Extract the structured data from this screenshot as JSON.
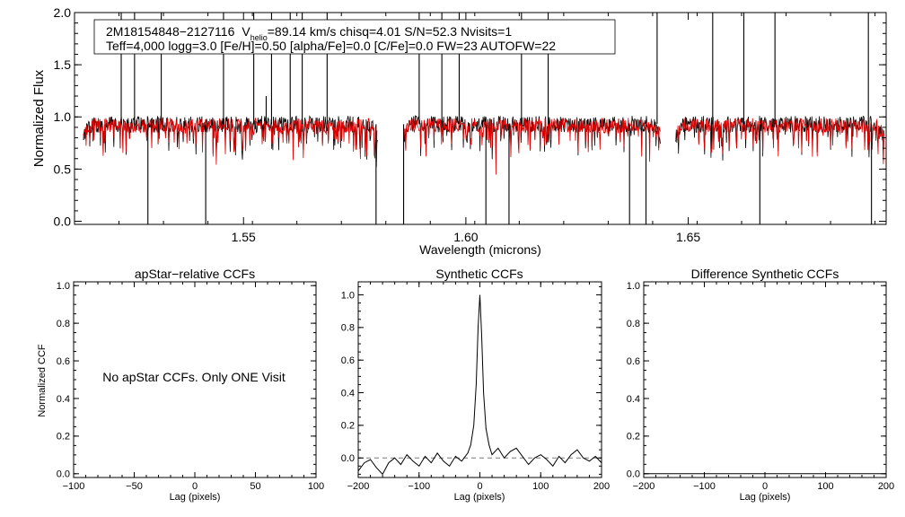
{
  "chart_data": [
    {
      "type": "line",
      "title": "",
      "xlabel": "Wavelength (microns)",
      "ylabel": "Normalized Flux",
      "xlim": [
        1.512,
        1.6945
      ],
      "ylim": [
        -0.03,
        2.0
      ],
      "x_ticks": [
        1.55,
        1.6,
        1.65
      ],
      "x_tick_labels": [
        "1.55",
        "1.60",
        "1.65"
      ],
      "y_ticks": [
        0.0,
        0.5,
        1.0,
        1.5,
        2.0
      ],
      "y_tick_labels": [
        "0.0",
        "0.5",
        "1.0",
        "1.5",
        "2.0"
      ],
      "grid": false,
      "legend": {
        "id_text": "2M18154848−2127116",
        "v_symbol": "V",
        "v_sub": "helio",
        "v_rest": "=89.14 km/s  chisq=4.01  S/N=52.3  Nvisits=1",
        "line2": "Teff=4,000 logg=3.0 [Fe/H]=0.50 [alpha/Fe]=0.0 [C/Fe]=0.0 FW=23 AUTOFW=22"
      },
      "detector_ranges": [
        [
          1.514,
          1.5802
        ],
        [
          1.586,
          1.6438
        ],
        [
          1.6472,
          1.694
        ]
      ],
      "continuum": 0.93,
      "series": [
        {
          "color": "#000000",
          "spikes": [
            [
              1.5225,
              2.3
            ],
            [
              1.5255,
              2.3
            ],
            [
              1.5285,
              -0.2
            ],
            [
              1.5315,
              2.3
            ],
            [
              1.5415,
              -0.2
            ],
            [
              1.5455,
              2.3
            ],
            [
              1.5523,
              2.3
            ],
            [
              1.5551,
              1.2
            ],
            [
              1.5563,
              2.3
            ],
            [
              1.5605,
              2.3
            ],
            [
              1.5632,
              2.3
            ],
            [
              1.5688,
              2.3
            ],
            [
              1.5798,
              -0.2
            ],
            [
              1.586,
              -0.2
            ],
            [
              1.5895,
              2.3
            ],
            [
              1.5946,
              2.3
            ],
            [
              1.5985,
              2.3
            ],
            [
              1.6045,
              -0.2
            ],
            [
              1.6097,
              -0.2
            ],
            [
              1.6125,
              2.3
            ],
            [
              1.6185,
              2.3
            ],
            [
              1.6368,
              -0.2
            ],
            [
              1.6405,
              -0.2
            ],
            [
              1.643,
              2.3
            ],
            [
              1.6555,
              2.3
            ],
            [
              1.6625,
              2.3
            ],
            [
              1.6661,
              -0.2
            ],
            [
              1.6695,
              2.3
            ],
            [
              1.6905,
              2.3
            ],
            [
              1.6912,
              -0.1
            ]
          ]
        },
        {
          "color": "#e00000",
          "spikes": []
        }
      ]
    },
    {
      "type": "line",
      "title": "apStar−relative CCFs",
      "xlabel": "Lag (pixels)",
      "ylabel": "Normalized CCF",
      "xlim": [
        -100,
        100
      ],
      "ylim": [
        -0.02,
        1.02
      ],
      "x_ticks": [
        -100,
        -50,
        0,
        50,
        100
      ],
      "x_tick_labels": [
        "−100",
        "−50",
        "0",
        "50",
        "100"
      ],
      "y_ticks": [
        0.0,
        0.2,
        0.4,
        0.6,
        0.8,
        1.0
      ],
      "y_tick_labels": [
        "0.0",
        "0.2",
        "0.4",
        "0.6",
        "0.8",
        "1.0"
      ],
      "annotation": "No apStar CCFs.  Only ONE Visit",
      "series": []
    },
    {
      "type": "line",
      "title": "Synthetic CCFs",
      "xlabel": "Lag (pixels)",
      "ylabel": "",
      "xlim": [
        -200,
        200
      ],
      "ylim": [
        -0.12,
        1.08
      ],
      "x_ticks": [
        -200,
        -100,
        0,
        100,
        200
      ],
      "x_tick_labels": [
        "−200",
        "−100",
        "0",
        "100",
        "200"
      ],
      "y_ticks": [
        0.0,
        0.2,
        0.4,
        0.6,
        0.8,
        1.0
      ],
      "y_tick_labels": [
        "0.0",
        "0.2",
        "0.4",
        "0.6",
        "0.8",
        "1.0"
      ],
      "reference_line": 0.0,
      "series": [
        {
          "color": "#000000",
          "x": [
            -200,
            -190,
            -180,
            -170,
            -160,
            -150,
            -140,
            -130,
            -120,
            -110,
            -100,
            -90,
            -80,
            -70,
            -60,
            -50,
            -40,
            -30,
            -20,
            -15,
            -10,
            -6,
            -3,
            0,
            3,
            6,
            10,
            15,
            20,
            30,
            40,
            50,
            60,
            70,
            80,
            90,
            100,
            110,
            120,
            130,
            140,
            150,
            160,
            170,
            180,
            190,
            200
          ],
          "y": [
            -0.08,
            -0.03,
            -0.01,
            -0.06,
            -0.1,
            -0.03,
            0.0,
            -0.04,
            0.02,
            -0.02,
            -0.05,
            0.01,
            -0.03,
            0.03,
            -0.02,
            -0.05,
            0.01,
            -0.02,
            0.03,
            0.08,
            0.2,
            0.45,
            0.8,
            1.0,
            0.75,
            0.4,
            0.18,
            0.08,
            0.02,
            0.06,
            0.0,
            0.04,
            0.06,
            0.01,
            -0.04,
            0.0,
            0.02,
            -0.01,
            -0.05,
            0.01,
            -0.03,
            0.02,
            0.05,
            0.0,
            -0.02,
            0.01,
            -0.03
          ]
        }
      ]
    },
    {
      "type": "line",
      "title": "Difference Synthetic CCFs",
      "xlabel": "Lag (pixels)",
      "ylabel": "",
      "xlim": [
        -200,
        200
      ],
      "ylim": [
        -0.02,
        1.02
      ],
      "x_ticks": [
        -200,
        -100,
        0,
        100,
        200
      ],
      "x_tick_labels": [
        "−200",
        "−100",
        "0",
        "100",
        "200"
      ],
      "y_ticks": [
        0.0,
        0.2,
        0.4,
        0.6,
        0.8,
        1.0
      ],
      "y_tick_labels": [
        "0.0",
        "0.2",
        "0.4",
        "0.6",
        "0.8",
        "1.0"
      ],
      "series": [
        {
          "color": "#000000",
          "x": [
            -200,
            200
          ],
          "y": [
            0.0,
            0.0
          ]
        }
      ]
    }
  ]
}
